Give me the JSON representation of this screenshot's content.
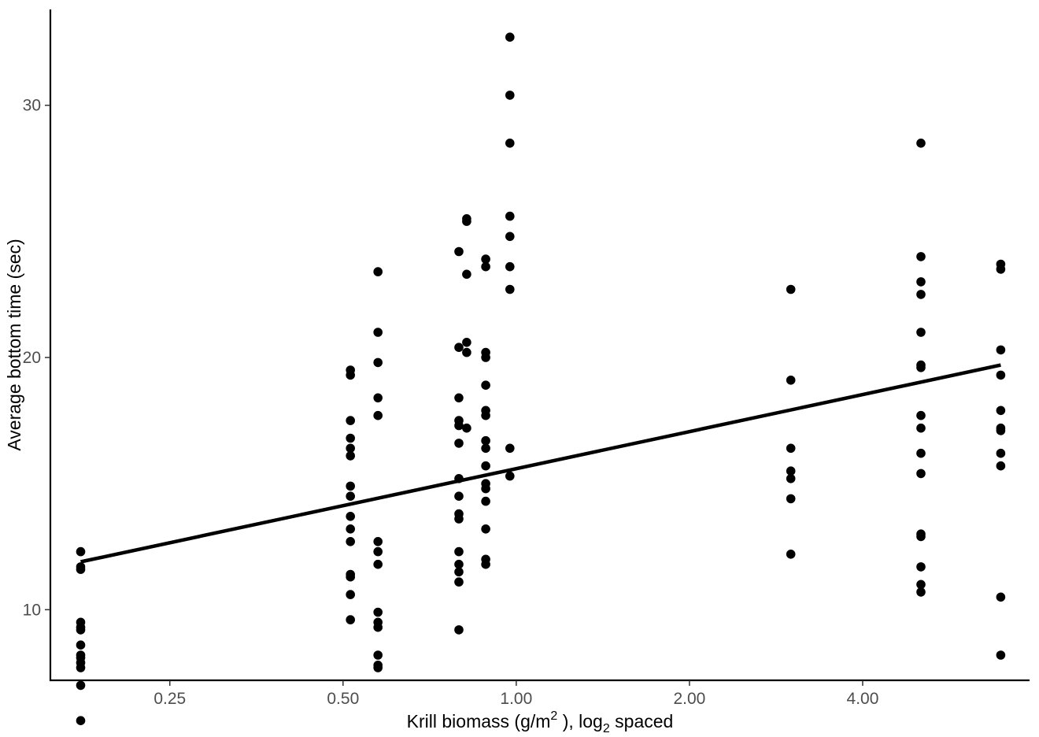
{
  "chart_data": {
    "type": "scatter",
    "x_scale": "log2",
    "xlim": [
      0.155,
      7.8
    ],
    "ylim": [
      7.2,
      33.8
    ],
    "xlabel": {
      "main": "Krill biomass (g/m",
      "sup": "2",
      "mid": " ), log",
      "sub": "2",
      "end": "  spaced"
    },
    "ylabel": "Average bottom time (sec)",
    "x_ticks": [
      {
        "value": 0.25,
        "label": "0.25"
      },
      {
        "value": 0.5,
        "label": "0.50"
      },
      {
        "value": 1.0,
        "label": "1.00"
      },
      {
        "value": 2.0,
        "label": "2.00"
      },
      {
        "value": 4.0,
        "label": "4.00"
      }
    ],
    "y_ticks": [
      {
        "value": 10,
        "label": "10"
      },
      {
        "value": 20,
        "label": "20"
      },
      {
        "value": 30,
        "label": "30"
      }
    ],
    "grid": false,
    "legend": "none",
    "point_color": "#000000",
    "line_color": "#000000",
    "points": [
      [
        0.175,
        12.3
      ],
      [
        0.175,
        11.7
      ],
      [
        0.175,
        11.6
      ],
      [
        0.175,
        9.5
      ],
      [
        0.175,
        9.3
      ],
      [
        0.175,
        9.2
      ],
      [
        0.175,
        8.6
      ],
      [
        0.175,
        8.2
      ],
      [
        0.175,
        8.1
      ],
      [
        0.175,
        7.9
      ],
      [
        0.175,
        7.7
      ],
      [
        0.175,
        7.0
      ],
      [
        0.175,
        5.6
      ],
      [
        0.515,
        19.5
      ],
      [
        0.515,
        19.3
      ],
      [
        0.515,
        17.5
      ],
      [
        0.515,
        16.8
      ],
      [
        0.515,
        16.4
      ],
      [
        0.515,
        16.1
      ],
      [
        0.515,
        14.9
      ],
      [
        0.515,
        14.5
      ],
      [
        0.515,
        13.7
      ],
      [
        0.515,
        13.2
      ],
      [
        0.515,
        12.7
      ],
      [
        0.515,
        11.4
      ],
      [
        0.515,
        11.3
      ],
      [
        0.515,
        10.6
      ],
      [
        0.515,
        9.6
      ],
      [
        0.575,
        23.4
      ],
      [
        0.575,
        21.0
      ],
      [
        0.575,
        19.8
      ],
      [
        0.575,
        18.4
      ],
      [
        0.575,
        17.7
      ],
      [
        0.575,
        12.7
      ],
      [
        0.575,
        12.3
      ],
      [
        0.575,
        11.8
      ],
      [
        0.575,
        9.9
      ],
      [
        0.575,
        9.5
      ],
      [
        0.575,
        9.3
      ],
      [
        0.575,
        8.2
      ],
      [
        0.575,
        7.8
      ],
      [
        0.575,
        7.7
      ],
      [
        0.795,
        24.2
      ],
      [
        0.795,
        20.4
      ],
      [
        0.795,
        18.4
      ],
      [
        0.795,
        17.5
      ],
      [
        0.795,
        17.3
      ],
      [
        0.795,
        16.6
      ],
      [
        0.795,
        15.2
      ],
      [
        0.795,
        14.5
      ],
      [
        0.795,
        13.8
      ],
      [
        0.795,
        13.6
      ],
      [
        0.795,
        12.3
      ],
      [
        0.795,
        11.8
      ],
      [
        0.795,
        11.5
      ],
      [
        0.795,
        11.1
      ],
      [
        0.795,
        9.2
      ],
      [
        0.82,
        25.5
      ],
      [
        0.82,
        25.4
      ],
      [
        0.82,
        23.3
      ],
      [
        0.82,
        20.6
      ],
      [
        0.82,
        20.2
      ],
      [
        0.82,
        17.2
      ],
      [
        0.885,
        23.9
      ],
      [
        0.885,
        23.6
      ],
      [
        0.885,
        20.2
      ],
      [
        0.885,
        20.0
      ],
      [
        0.885,
        18.9
      ],
      [
        0.885,
        17.9
      ],
      [
        0.885,
        17.7
      ],
      [
        0.885,
        16.7
      ],
      [
        0.885,
        16.4
      ],
      [
        0.885,
        15.7
      ],
      [
        0.885,
        15.0
      ],
      [
        0.885,
        14.8
      ],
      [
        0.885,
        14.3
      ],
      [
        0.885,
        13.2
      ],
      [
        0.885,
        12.0
      ],
      [
        0.885,
        11.8
      ],
      [
        0.975,
        32.7
      ],
      [
        0.975,
        30.4
      ],
      [
        0.975,
        28.5
      ],
      [
        0.975,
        25.6
      ],
      [
        0.975,
        24.8
      ],
      [
        0.975,
        23.6
      ],
      [
        0.975,
        22.7
      ],
      [
        0.975,
        16.4
      ],
      [
        0.975,
        15.3
      ],
      [
        3.0,
        22.7
      ],
      [
        3.0,
        19.1
      ],
      [
        3.0,
        16.4
      ],
      [
        3.0,
        15.5
      ],
      [
        3.0,
        15.2
      ],
      [
        3.0,
        14.4
      ],
      [
        3.0,
        12.2
      ],
      [
        5.05,
        28.5
      ],
      [
        5.05,
        24.0
      ],
      [
        5.05,
        23.0
      ],
      [
        5.05,
        22.5
      ],
      [
        5.05,
        21.0
      ],
      [
        5.05,
        19.7
      ],
      [
        5.05,
        19.6
      ],
      [
        5.05,
        17.7
      ],
      [
        5.05,
        17.2
      ],
      [
        5.05,
        16.2
      ],
      [
        5.05,
        15.4
      ],
      [
        5.05,
        13.0
      ],
      [
        5.05,
        12.9
      ],
      [
        5.05,
        11.7
      ],
      [
        5.05,
        11.0
      ],
      [
        5.05,
        10.7
      ],
      [
        6.95,
        23.7
      ],
      [
        6.95,
        23.5
      ],
      [
        6.95,
        20.3
      ],
      [
        6.95,
        19.3
      ],
      [
        6.95,
        17.9
      ],
      [
        6.95,
        17.2
      ],
      [
        6.95,
        17.1
      ],
      [
        6.95,
        16.2
      ],
      [
        6.95,
        15.7
      ],
      [
        6.95,
        10.5
      ],
      [
        6.95,
        8.2
      ]
    ],
    "fit_line": {
      "x": [
        0.175,
        6.95
      ],
      "y": [
        11.9,
        19.7
      ]
    }
  }
}
